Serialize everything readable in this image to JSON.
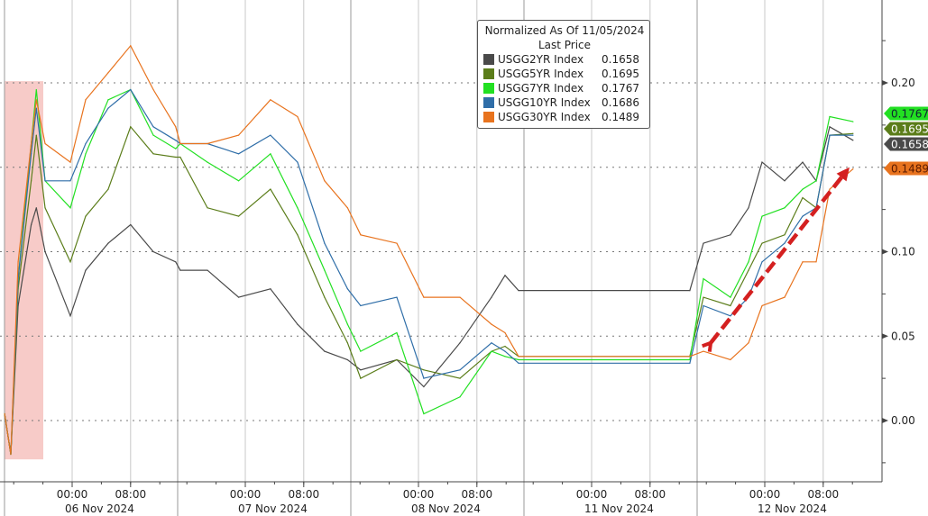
{
  "chart_data": {
    "type": "line",
    "title": "Normalized As Of 11/05/2024",
    "subtitle": "Last Price",
    "legend_placement": "top-center",
    "grid": true,
    "ylim": [
      -0.03,
      0.245
    ],
    "y_ticks": [
      "0.20",
      "0.10",
      "0.05",
      "0.00"
    ],
    "y_tick_values": [
      0.2,
      0.1,
      0.05,
      0.0
    ],
    "y_gridlines": [
      0.2,
      0.15,
      0.1,
      0.05,
      0.0
    ],
    "x_time_ticks": [
      "00:00",
      "08:00"
    ],
    "x_days": [
      "06 Nov 2024",
      "07 Nov 2024",
      "08 Nov 2024",
      "11 Nov 2024",
      "12 Nov 2024"
    ],
    "x": [
      "11/05 14:45",
      "11/05 15:36",
      "11/05 16:36",
      "11/05 18:24",
      "11/05 19:06",
      "11/05 20:18",
      "11/05 23:45",
      "11/06 01:51",
      "11/06 04:56",
      "11/06 08:00",
      "11/06 11:07",
      "11/06 14:10",
      "11/06 15:06",
      "11/06 18:49",
      "11/06 23:05",
      "11/07 03:27",
      "11/07 07:09",
      "11/07 10:51",
      "11/07 14:00",
      "11/07 16:05",
      "11/07 21:02",
      "11/08 00:44",
      "11/08 05:41",
      "11/08 10:00",
      "11/08 11:51",
      "11/08 13:42",
      "11/11 13:27",
      "11/11 15:36",
      "11/11 19:18",
      "11/11 21:47",
      "11/11 23:38",
      "11/12 02:43",
      "11/12 05:11",
      "11/12 07:02",
      "11/12 08:53",
      "11/12 12:05"
    ],
    "series": [
      {
        "name": "USGG2YR Index",
        "last": "0.1658",
        "color": "#4a4a4a",
        "values": [
          0.004,
          -0.02,
          0.068,
          0.116,
          0.126,
          0.1,
          0.062,
          0.089,
          0.105,
          0.116,
          0.1,
          0.094,
          0.089,
          0.089,
          0.073,
          0.078,
          0.057,
          0.041,
          0.036,
          0.03,
          0.036,
          0.02,
          0.046,
          0.073,
          0.086,
          0.077,
          0.077,
          0.105,
          0.11,
          0.126,
          0.153,
          0.142,
          0.153,
          0.142,
          0.174,
          0.166
        ]
      },
      {
        "name": "USGG5YR Index",
        "last": "0.1695",
        "color": "#5b7d1a",
        "values": [
          0.004,
          -0.02,
          0.078,
          0.142,
          0.169,
          0.126,
          0.094,
          0.121,
          0.137,
          0.174,
          0.158,
          0.156,
          0.156,
          0.126,
          0.121,
          0.137,
          0.11,
          0.073,
          0.046,
          0.025,
          0.036,
          0.03,
          0.025,
          0.041,
          0.044,
          0.038,
          0.038,
          0.073,
          0.068,
          0.089,
          0.105,
          0.11,
          0.132,
          0.126,
          0.169,
          0.17
        ]
      },
      {
        "name": "USGG7YR Index",
        "last": "0.1767",
        "color": "#22e022",
        "values": [
          0.004,
          -0.02,
          0.084,
          0.164,
          0.196,
          0.142,
          0.126,
          0.158,
          0.19,
          0.196,
          0.169,
          0.161,
          0.164,
          0.153,
          0.142,
          0.158,
          0.126,
          0.089,
          0.057,
          0.041,
          0.052,
          0.004,
          0.014,
          0.041,
          0.038,
          0.036,
          0.036,
          0.084,
          0.073,
          0.094,
          0.121,
          0.126,
          0.137,
          0.142,
          0.18,
          0.177
        ]
      },
      {
        "name": "USGG10YR Index",
        "last": "0.1686",
        "color": "#2f6ea8",
        "values": [
          0.004,
          -0.02,
          0.084,
          0.158,
          0.185,
          0.142,
          0.142,
          0.164,
          0.185,
          0.196,
          0.174,
          0.166,
          0.164,
          0.164,
          0.158,
          0.169,
          0.153,
          0.105,
          0.078,
          0.068,
          0.073,
          0.025,
          0.03,
          0.046,
          0.041,
          0.034,
          0.034,
          0.068,
          0.062,
          0.073,
          0.094,
          0.105,
          0.121,
          0.126,
          0.169,
          0.169
        ]
      },
      {
        "name": "USGG30YR Index",
        "last": "0.1489",
        "color": "#e8731e",
        "values": [
          0.004,
          -0.02,
          0.094,
          0.164,
          0.19,
          0.164,
          0.153,
          0.19,
          0.206,
          0.222,
          0.196,
          0.174,
          0.164,
          0.164,
          0.169,
          0.19,
          0.18,
          0.142,
          0.126,
          0.11,
          0.105,
          0.073,
          0.073,
          0.057,
          0.052,
          0.038,
          0.038,
          0.041,
          0.036,
          0.046,
          0.068,
          0.073,
          0.094,
          0.094,
          0.137,
          0.149
        ]
      }
    ],
    "annotations": {
      "highlight": {
        "from": "11/05 14:45",
        "to": "11/05 20:03",
        "ymin": -0.023,
        "ymax": 0.201,
        "color": "#f4b9b5"
      },
      "arrow": {
        "from": [
          "11/11 16:36",
          0.046
        ],
        "to": [
          "11/12 11:36",
          0.15
        ],
        "color": "#d42020"
      }
    }
  },
  "legend": {
    "title": "Normalized As Of 11/05/2024",
    "subtitle": "Last Price"
  }
}
